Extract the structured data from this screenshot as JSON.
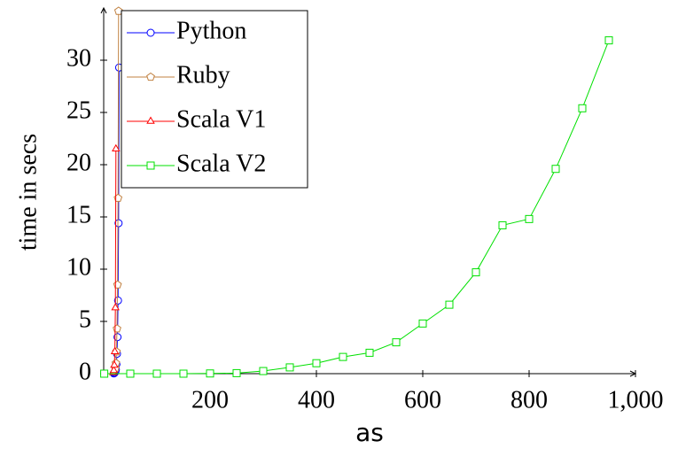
{
  "chart_data": {
    "type": "line",
    "xlabel": "as",
    "ylabel": "time in secs",
    "xlim": [
      0,
      1000
    ],
    "ylim": [
      0,
      35
    ],
    "xticks": [
      200,
      400,
      600,
      800,
      {
        "value": 1000,
        "label": "1,000"
      }
    ],
    "yticks": [
      0,
      5,
      10,
      15,
      20,
      25,
      30
    ],
    "legend": "top-left",
    "series": [
      {
        "name": "Python",
        "color": "#0000ff",
        "marker": "circle",
        "x": [
          19,
          20,
          21,
          22,
          23,
          24,
          25,
          26,
          27,
          28,
          29
        ],
        "values": [
          0.02,
          0.05,
          0.1,
          0.2,
          0.4,
          0.9,
          1.9,
          3.5,
          7.0,
          14.4,
          29.3
        ]
      },
      {
        "name": "Ruby",
        "color": "#c08040",
        "marker": "pentagon",
        "x": [
          22,
          23,
          24,
          25,
          26,
          27,
          28
        ],
        "values": [
          0.5,
          1.0,
          2.1,
          4.3,
          8.5,
          16.8,
          34.7
        ]
      },
      {
        "name": "Scala V1",
        "color": "#ff0000",
        "marker": "triangle",
        "x": [
          18,
          19,
          20,
          21,
          22,
          23
        ],
        "values": [
          0.1,
          0.3,
          0.8,
          2.1,
          6.3,
          21.5
        ]
      },
      {
        "name": "Scala V2",
        "color": "#00e000",
        "marker": "square",
        "x": [
          1,
          50,
          100,
          150,
          200,
          250,
          300,
          350,
          400,
          450,
          500,
          550,
          600,
          650,
          700,
          750,
          800,
          850,
          900,
          950
        ],
        "values": [
          0,
          0,
          0,
          0,
          0.02,
          0.05,
          0.25,
          0.6,
          1.0,
          1.6,
          2.0,
          3.0,
          4.8,
          6.6,
          9.7,
          14.2,
          14.8,
          19.6,
          25.4,
          31.9
        ]
      }
    ]
  }
}
